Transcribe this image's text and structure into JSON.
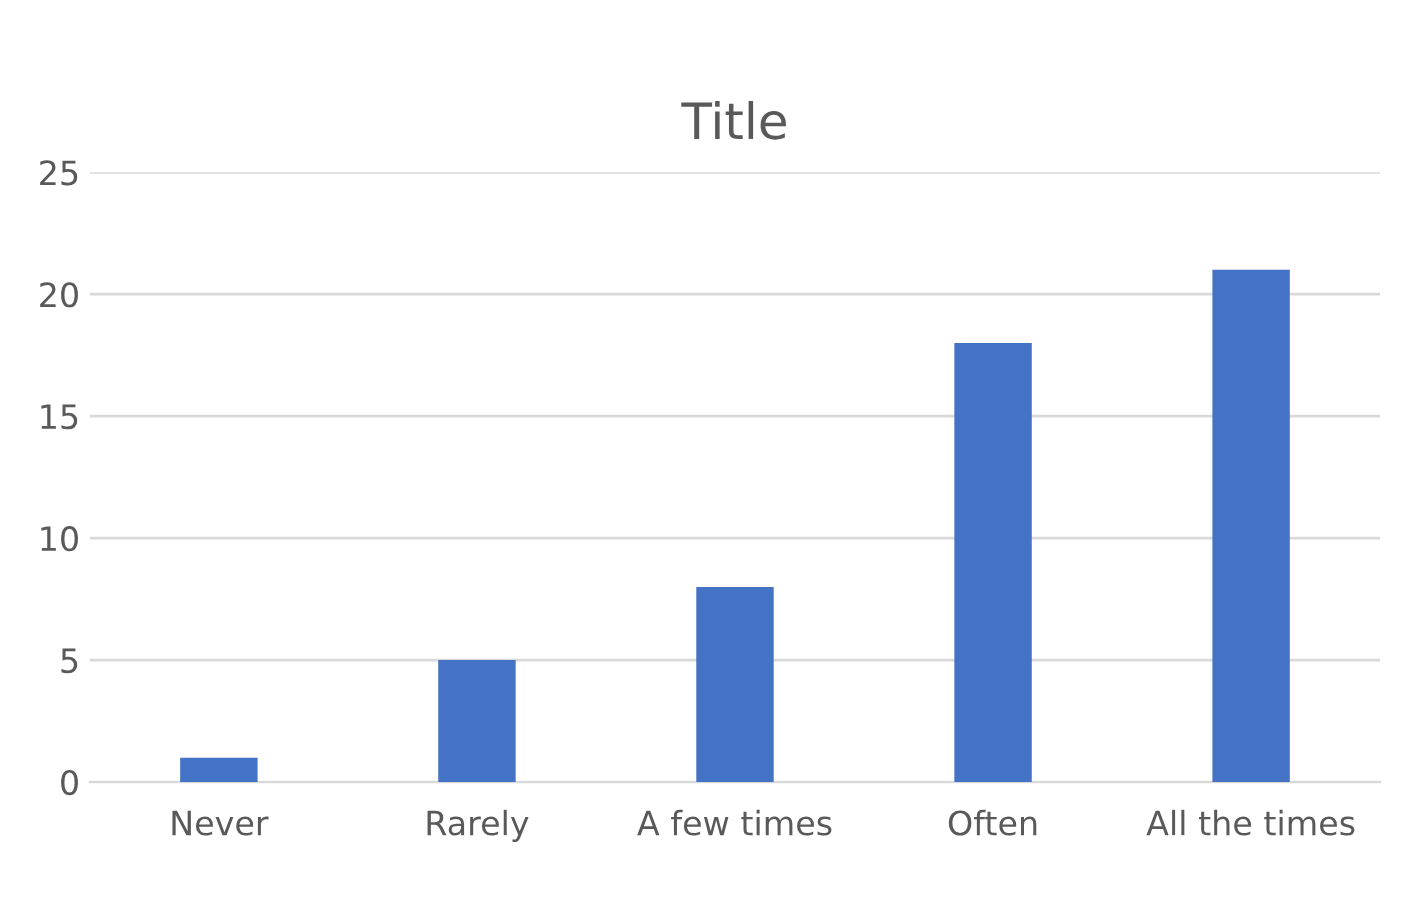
{
  "chart_data": {
    "type": "bar",
    "title": "Title",
    "categories": [
      "Never",
      "Rarely",
      "A few times",
      "Often",
      "All the times"
    ],
    "values": [
      1,
      5,
      8,
      18,
      21
    ],
    "color": "#4472c4",
    "ylim": [
      0,
      25
    ],
    "yticks": [
      0,
      5,
      10,
      15,
      20,
      25
    ],
    "grid": "y"
  }
}
